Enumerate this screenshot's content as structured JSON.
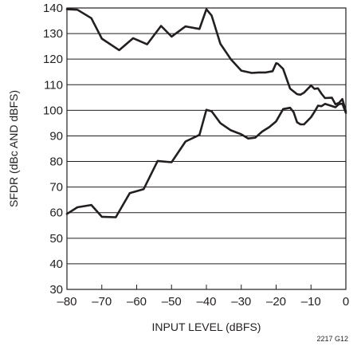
{
  "chart_data": {
    "type": "line",
    "title": "",
    "xlabel": "INPUT LEVEL (dBFS)",
    "ylabel": "SFDR (dBc AND dBFS)",
    "xlim": [
      -80,
      0
    ],
    "ylim": [
      30,
      140
    ],
    "xticks": [
      -80,
      -70,
      -60,
      -50,
      -40,
      -30,
      -20,
      -10,
      0
    ],
    "xtick_labels": [
      "–80",
      "–70",
      "–60",
      "–50",
      "–40",
      "–30",
      "–20",
      "–10",
      "0"
    ],
    "yticks": [
      30,
      40,
      50,
      60,
      70,
      80,
      90,
      100,
      110,
      120,
      130,
      140
    ],
    "ytick_labels": [
      "30",
      "40",
      "50",
      "60",
      "70",
      "80",
      "90",
      "100",
      "110",
      "120",
      "130",
      "140"
    ],
    "grid": "horizontal",
    "figure_id": "2217 G12",
    "series": [
      {
        "x": [
          -80,
          -77,
          -73,
          -70,
          -65,
          -61,
          -57,
          -53,
          -50,
          -46,
          -42,
          -40,
          -38.5,
          -36,
          -33,
          -30,
          -27,
          -25,
          -23,
          -21,
          -20,
          -19.5,
          -18,
          -16,
          -14,
          -13,
          -12,
          -10,
          -9,
          -8,
          -7,
          -6,
          -4,
          -3,
          -2,
          -1,
          0
        ],
        "values": [
          139.5,
          139.3,
          136,
          128,
          123.5,
          128.2,
          125.8,
          133,
          128.8,
          132.8,
          131.8,
          139.5,
          137,
          126,
          120,
          115.5,
          114.6,
          114.8,
          114.8,
          115.3,
          118.4,
          118.2,
          116.2,
          108.5,
          106.3,
          106.1,
          106.9,
          109.7,
          108.4,
          108.6,
          106.5,
          104.8,
          104.9,
          102.4,
          102.9,
          104.4,
          99.6
        ]
      },
      {
        "x": [
          -80,
          -77,
          -73,
          -70,
          -66,
          -62,
          -58,
          -54,
          -50,
          -46,
          -42,
          -40,
          -38.5,
          -36,
          -33,
          -30,
          -28,
          -26,
          -24,
          -22,
          -20,
          -18,
          -16,
          -15,
          -14,
          -13,
          -12,
          -10,
          -9,
          -8,
          -7,
          -6,
          -5,
          -3,
          -2,
          -1,
          0
        ],
        "values": [
          59.5,
          62.1,
          63,
          58.4,
          58.2,
          67.6,
          69.2,
          80.2,
          79.7,
          87.8,
          90.4,
          100.2,
          99.6,
          95,
          92.2,
          90.6,
          89,
          89.3,
          91.7,
          93.4,
          95.7,
          100.5,
          101,
          99.3,
          95.3,
          94.5,
          94.5,
          97.3,
          99.4,
          101.8,
          101.6,
          102.5,
          102.1,
          101.2,
          102.4,
          102.6,
          99
        ]
      }
    ]
  }
}
